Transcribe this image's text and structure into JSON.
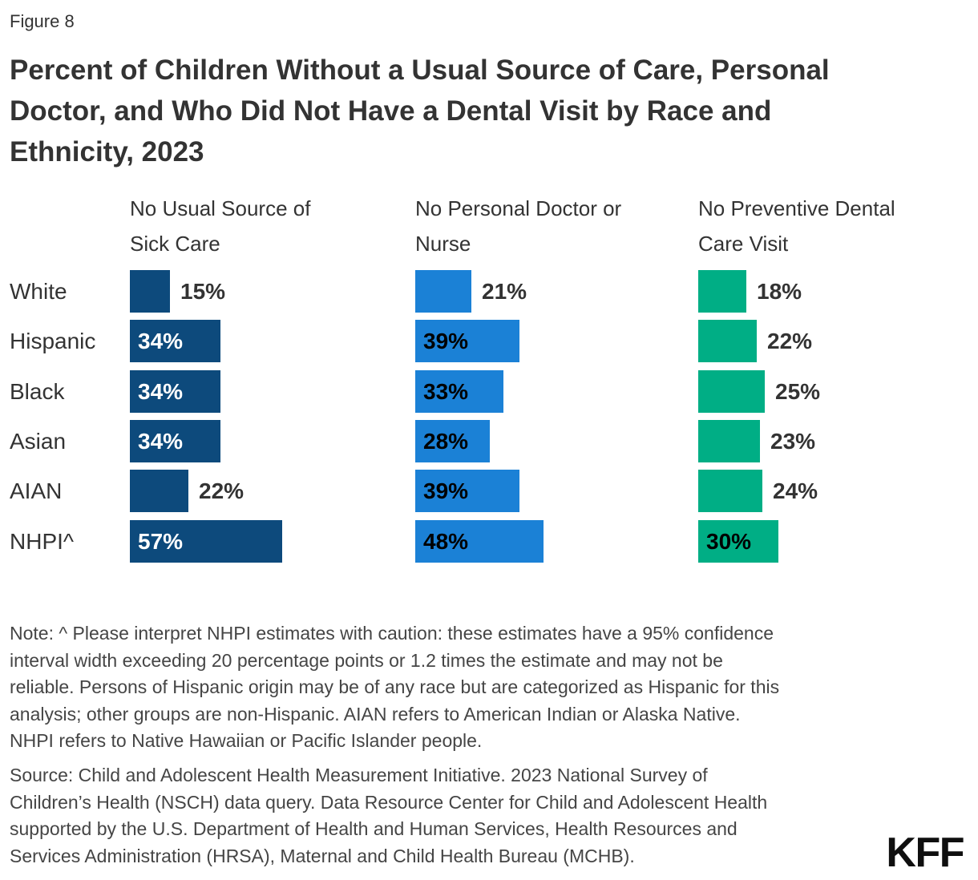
{
  "figure_label": "Figure 8",
  "title_lines": [
    "Percent of Children Without a Usual Source of Care, Personal",
    "Doctor, and Who Did Not Have a Dental Visit by Race and",
    "Ethnicity, 2023"
  ],
  "chart_data": {
    "type": "bar",
    "orientation": "horizontal",
    "title": "Percent of Children Without a Usual Source of Care, Personal Doctor, and Who Did Not Have a Dental Visit by Race and Ethnicity, 2023",
    "value_suffix": "%",
    "xlim": [
      0,
      60
    ],
    "grid": false,
    "legend_position": "column-headers",
    "categories": [
      "White",
      "Hispanic",
      "Black",
      "Asian",
      "AIAN",
      "NHPI^"
    ],
    "series": [
      {
        "name": "No Usual Source of Sick Care",
        "name_lines": [
          "No Usual Source of",
          "Sick Care"
        ],
        "color": "#0D4A7C",
        "inside_label_color": "#FFFFFF",
        "values": [
          15,
          34,
          34,
          34,
          22,
          57
        ]
      },
      {
        "name": "No Personal Doctor or Nurse",
        "name_lines": [
          "No Personal Doctor or",
          "Nurse"
        ],
        "color": "#1B81D6",
        "inside_label_color": "#000000",
        "values": [
          21,
          39,
          33,
          28,
          39,
          48
        ]
      },
      {
        "name": "No Preventive Dental Care Visit",
        "name_lines": [
          "No Preventive Dental",
          "Care Visit"
        ],
        "color": "#00AE85",
        "inside_label_color": "#000000",
        "values": [
          18,
          22,
          25,
          23,
          24,
          30
        ]
      }
    ],
    "outside_label_color": "#333333"
  },
  "note_lines": [
    "Note: ^ Please interpret NHPI estimates with caution: these estimates have a 95% confidence",
    "interval width exceeding 20 percentage points or 1.2 times the estimate and may not be",
    "reliable. Persons of Hispanic origin may be of any race but are categorized as Hispanic for this",
    "analysis; other groups are non-Hispanic. AIAN refers to American Indian or Alaska Native.",
    "NHPI refers to Native Hawaiian or Pacific Islander people."
  ],
  "source_lines": [
    "Source: Child and Adolescent Health Measurement Initiative. 2023 National Survey of",
    "Children’s Health (NSCH) data query. Data Resource Center for Child and Adolescent Health",
    "supported by the U.S. Department of Health and Human Services, Health Resources and",
    "Services Administration (HRSA), Maternal and Child Health Bureau (MCHB)."
  ],
  "logo_text": "KFF"
}
